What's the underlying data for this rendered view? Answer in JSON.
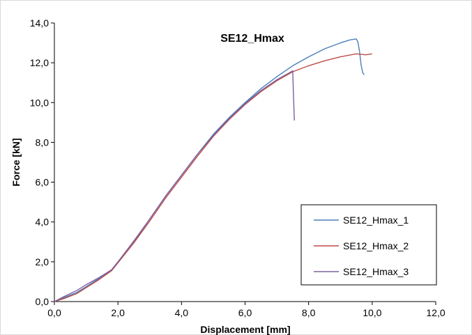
{
  "chart_data": {
    "type": "line",
    "title": "SE12_Hmax",
    "xlabel": "Displacement [mm]",
    "ylabel": "Force [kN]",
    "xlim": [
      0,
      12
    ],
    "ylim": [
      0,
      14
    ],
    "x_ticks": [
      "0,0",
      "2,0",
      "4,0",
      "6,0",
      "8,0",
      "10,0",
      "12,0"
    ],
    "y_ticks": [
      "0,0",
      "2,0",
      "4,0",
      "6,0",
      "8,0",
      "10,0",
      "12,0",
      "14,0"
    ],
    "grid": false,
    "legend_position": "bottom-right",
    "series": [
      {
        "name": "SE12_Hmax_1",
        "color": "#4a7ebb",
        "x": [
          0,
          0.3,
          0.7,
          1.0,
          1.4,
          1.8,
          2.0,
          2.5,
          3.0,
          3.5,
          4.0,
          4.5,
          5.0,
          5.5,
          6.0,
          6.5,
          7.0,
          7.5,
          8.0,
          8.5,
          9.0,
          9.3,
          9.5,
          9.55,
          9.6,
          9.65,
          9.7,
          9.75
        ],
        "y": [
          0,
          0.2,
          0.45,
          0.75,
          1.15,
          1.6,
          2.0,
          3.0,
          4.15,
          5.3,
          6.35,
          7.4,
          8.4,
          9.25,
          10.0,
          10.7,
          11.3,
          11.85,
          12.3,
          12.7,
          13.0,
          13.15,
          13.2,
          13.05,
          12.6,
          11.9,
          11.5,
          11.4
        ]
      },
      {
        "name": "SE12_Hmax_2",
        "color": "#be4b48",
        "x": [
          0,
          0.3,
          0.7,
          1.0,
          1.4,
          1.8,
          2.0,
          2.5,
          3.0,
          3.5,
          4.0,
          4.5,
          5.0,
          5.5,
          6.0,
          6.5,
          7.0,
          7.5,
          8.0,
          8.5,
          9.0,
          9.5,
          9.8,
          10.0
        ],
        "y": [
          0,
          0.15,
          0.4,
          0.7,
          1.1,
          1.55,
          1.95,
          2.95,
          4.05,
          5.2,
          6.25,
          7.3,
          8.3,
          9.15,
          9.9,
          10.55,
          11.1,
          11.55,
          11.85,
          12.1,
          12.3,
          12.45,
          12.4,
          12.45
        ]
      },
      {
        "name": "SE12_Hmax_3",
        "color": "#7d60a0",
        "x": [
          0,
          0.3,
          0.7,
          1.0,
          1.4,
          1.8,
          2.0,
          2.5,
          3.0,
          3.5,
          4.0,
          4.5,
          5.0,
          5.5,
          6.0,
          6.5,
          7.0,
          7.4,
          7.5,
          7.52,
          7.55
        ],
        "y": [
          0,
          0.25,
          0.55,
          0.85,
          1.2,
          1.6,
          2.0,
          3.05,
          4.15,
          5.3,
          6.35,
          7.4,
          8.35,
          9.2,
          9.95,
          10.6,
          11.15,
          11.5,
          11.6,
          10.5,
          9.1
        ]
      }
    ]
  }
}
